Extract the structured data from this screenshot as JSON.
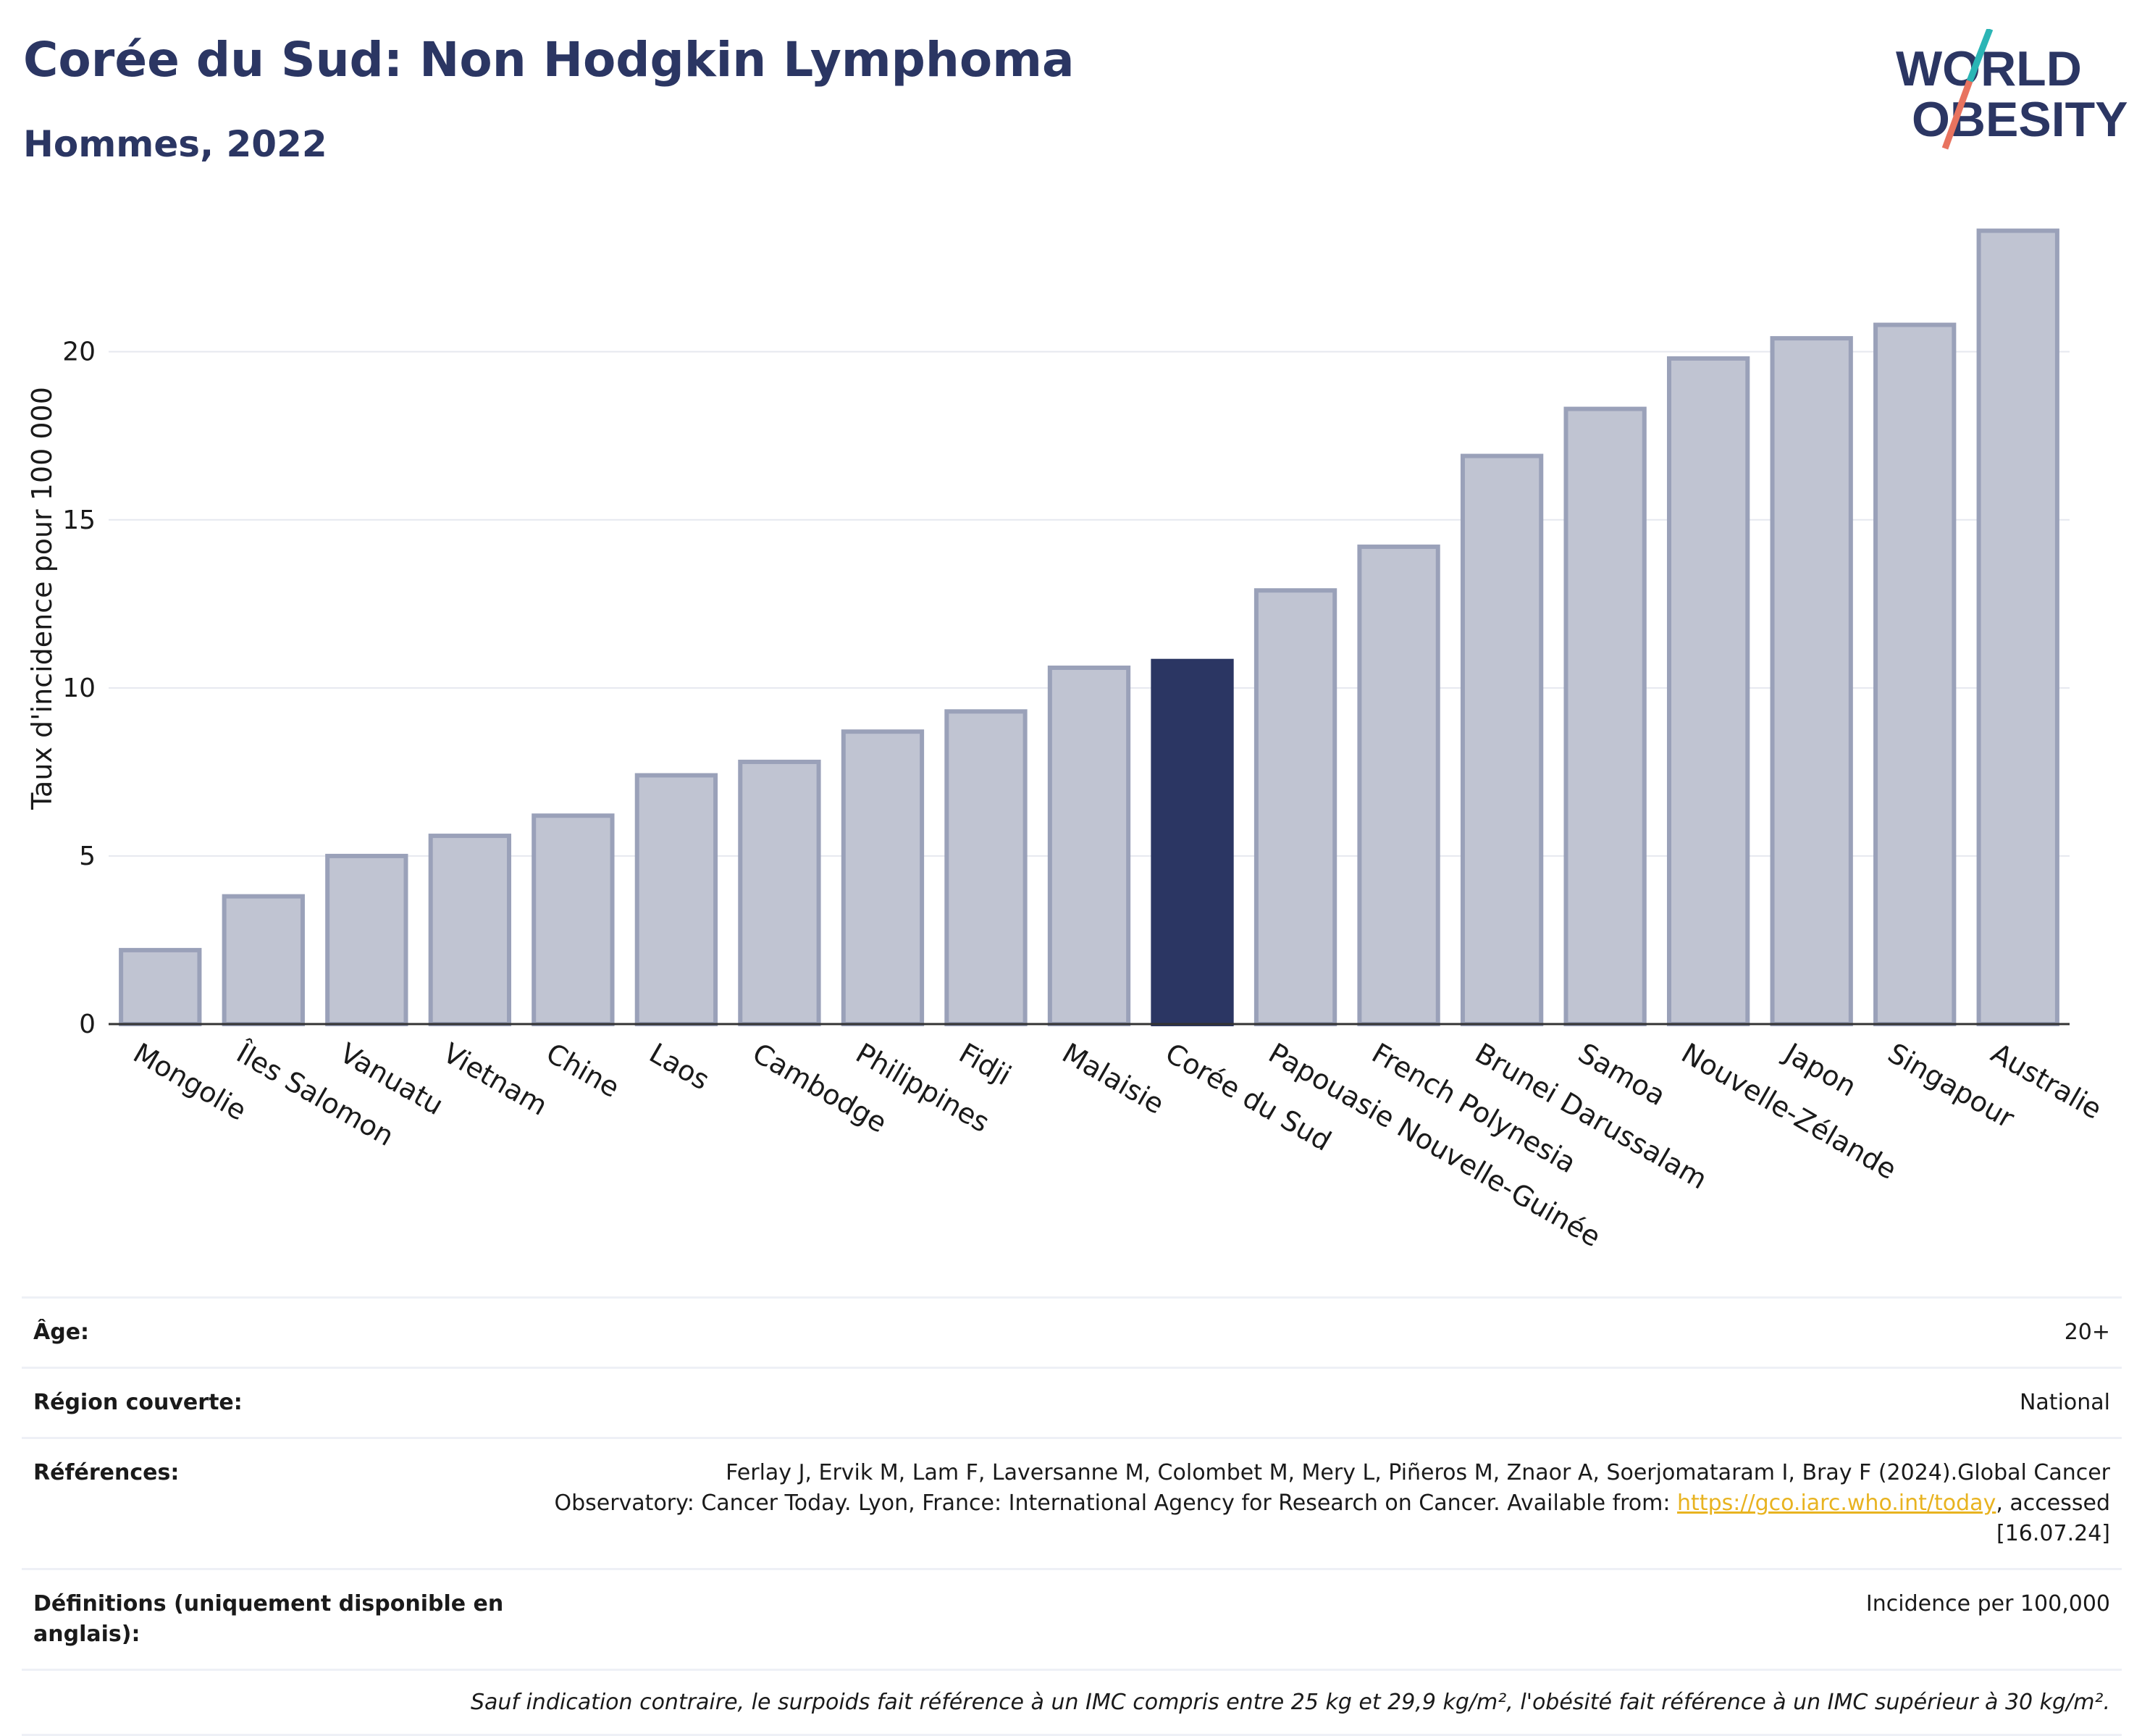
{
  "title": "Corée du Sud: Non Hodgkin Lymphoma",
  "subtitle": "Hommes, 2022",
  "logo": {
    "line1": "WORLD",
    "line2": "OBESITY"
  },
  "colors": {
    "highlight": "#2b3663",
    "bar": "#c0c4d2",
    "bar_edge": "#9aa1b9",
    "title": "#2b3663",
    "link": "#e8b320",
    "grid": "#e6e8ef"
  },
  "chart_data": {
    "type": "bar",
    "ylabel": "Taux d'incidence pour 100 000",
    "ylim": [
      0,
      24
    ],
    "yticks": [
      0,
      5,
      10,
      15,
      20
    ],
    "grid": true,
    "highlight": "Corée du Sud",
    "categories": [
      "Mongolie",
      "Îles Salomon",
      "Vanuatu",
      "Vietnam",
      "Chine",
      "Laos",
      "Cambodge",
      "Philippines",
      "Fidji",
      "Malaisie",
      "Corée du Sud",
      "Papouasie Nouvelle-Guinée",
      "French Polynesia",
      "Brunei Darussalam",
      "Samoa",
      "Nouvelle-Zélande",
      "Japon",
      "Singapour",
      "Australie"
    ],
    "values": [
      2.2,
      3.8,
      5.0,
      5.6,
      6.2,
      7.4,
      7.8,
      8.7,
      9.3,
      10.6,
      10.8,
      12.9,
      14.2,
      16.9,
      18.3,
      19.8,
      20.4,
      20.8,
      23.6
    ]
  },
  "info": {
    "age_label": "Âge:",
    "age_value": "20+",
    "region_label": "Région couverte:",
    "region_value": "National",
    "refs_label": "Références:",
    "refs_text1": "Ferlay J, Ervik M, Lam F, Laversanne M, Colombet M, Mery L, Piñeros M, Znaor A, Soerjomataram I, Bray F (2024).Global Cancer",
    "refs_text2": "Observatory: Cancer Today. Lyon, France: International Agency for Research on Cancer. Available from: ",
    "refs_link": "https://gco.iarc.who.int/today",
    "refs_text3": ", accessed [16.07.24]",
    "defs_label": "Définitions (uniquement disponible en anglais):",
    "defs_value": "Incidence per 100,000",
    "note": "Sauf indication contraire, le surpoids fait référence à un IMC compris entre 25 kg et 29,9 kg/m², l'obésité fait référence à un IMC supérieur à 30 kg/m²."
  }
}
